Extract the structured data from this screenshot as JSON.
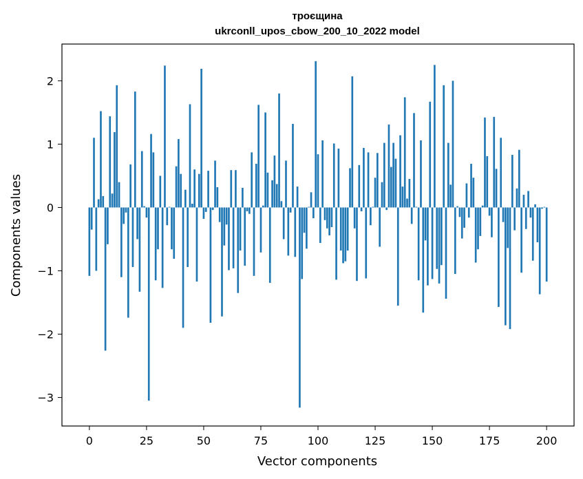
{
  "chart_data": {
    "type": "bar",
    "title": "троєщина",
    "subtitle": "ukrconll_upos_cbow_200_10_2022 model",
    "xlabel": "Vector components",
    "ylabel": "Components values",
    "xlim": [
      -12,
      212
    ],
    "ylim": [
      -3.45,
      2.58
    ],
    "xticks": [
      0,
      25,
      50,
      75,
      100,
      125,
      150,
      175,
      200
    ],
    "yticks": [
      -3,
      -2,
      -1,
      0,
      1,
      2
    ],
    "ytick_labels": [
      "−3",
      "−2",
      "−1",
      "0",
      "1",
      "2"
    ],
    "grid": false,
    "bar_color": "#1f77b4",
    "values": [
      -1.08,
      -0.35,
      1.1,
      -1.0,
      0.13,
      1.52,
      0.18,
      -2.26,
      -0.58,
      1.44,
      0.22,
      1.19,
      1.93,
      0.4,
      -1.1,
      -0.26,
      -0.08,
      -1.74,
      0.68,
      -0.94,
      1.83,
      -0.5,
      -1.33,
      0.89,
      0.02,
      -0.16,
      -3.05,
      1.16,
      0.87,
      -1.15,
      -0.66,
      0.5,
      -1.27,
      2.24,
      -0.28,
      0.01,
      -0.66,
      -0.81,
      0.65,
      1.08,
      0.53,
      -1.9,
      0.28,
      -0.94,
      1.63,
      0.06,
      0.6,
      -1.17,
      0.53,
      2.19,
      -0.18,
      -0.07,
      0.58,
      -1.82,
      -0.04,
      0.74,
      0.32,
      -0.23,
      -1.72,
      -0.6,
      -0.27,
      -0.99,
      0.59,
      -0.96,
      0.59,
      -1.35,
      -0.68,
      0.31,
      -0.92,
      -0.06,
      -0.1,
      0.87,
      -1.08,
      0.69,
      1.62,
      -0.71,
      0.03,
      1.5,
      0.55,
      -1.19,
      0.43,
      0.82,
      0.37,
      1.8,
      0.1,
      -0.5,
      0.74,
      -0.76,
      -0.08,
      1.32,
      -0.78,
      0.33,
      -3.16,
      -1.13,
      -0.4,
      -0.65,
      0.01,
      0.24,
      -0.17,
      2.31,
      0.84,
      -0.56,
      1.06,
      -0.2,
      -0.33,
      -0.44,
      -0.31,
      1.01,
      -1.14,
      0.93,
      -0.68,
      -0.88,
      -0.85,
      -0.68,
      0.62,
      2.07,
      -0.33,
      -1.16,
      0.67,
      -0.06,
      0.94,
      -1.12,
      0.87,
      -0.28,
      0.01,
      0.47,
      0.86,
      -0.62,
      0.4,
      1.02,
      -0.04,
      1.31,
      0.64,
      1.02,
      0.77,
      -1.55,
      1.14,
      0.33,
      1.74,
      0.14,
      0.45,
      -0.26,
      1.49,
      0.01,
      -1.15,
      1.06,
      -1.66,
      -0.52,
      -1.23,
      1.67,
      -1.13,
      2.25,
      -0.97,
      -1.2,
      -0.91,
      1.93,
      -1.44,
      1.02,
      0.36,
      2.0,
      -1.05,
      0.02,
      -0.15,
      -0.49,
      -0.32,
      0.38,
      -0.16,
      0.69,
      0.47,
      -0.87,
      -0.66,
      -0.45,
      0.03,
      1.42,
      0.81,
      -0.13,
      -0.47,
      1.43,
      0.61,
      -1.57,
      1.1,
      -0.23,
      -1.86,
      -0.64,
      -1.92,
      0.83,
      -0.36,
      0.3,
      0.91,
      -1.03,
      0.2,
      -0.34,
      0.26,
      -0.16,
      -0.84,
      0.05,
      -0.55,
      -1.37,
      -0.02,
      0.01,
      -1.17
    ]
  }
}
